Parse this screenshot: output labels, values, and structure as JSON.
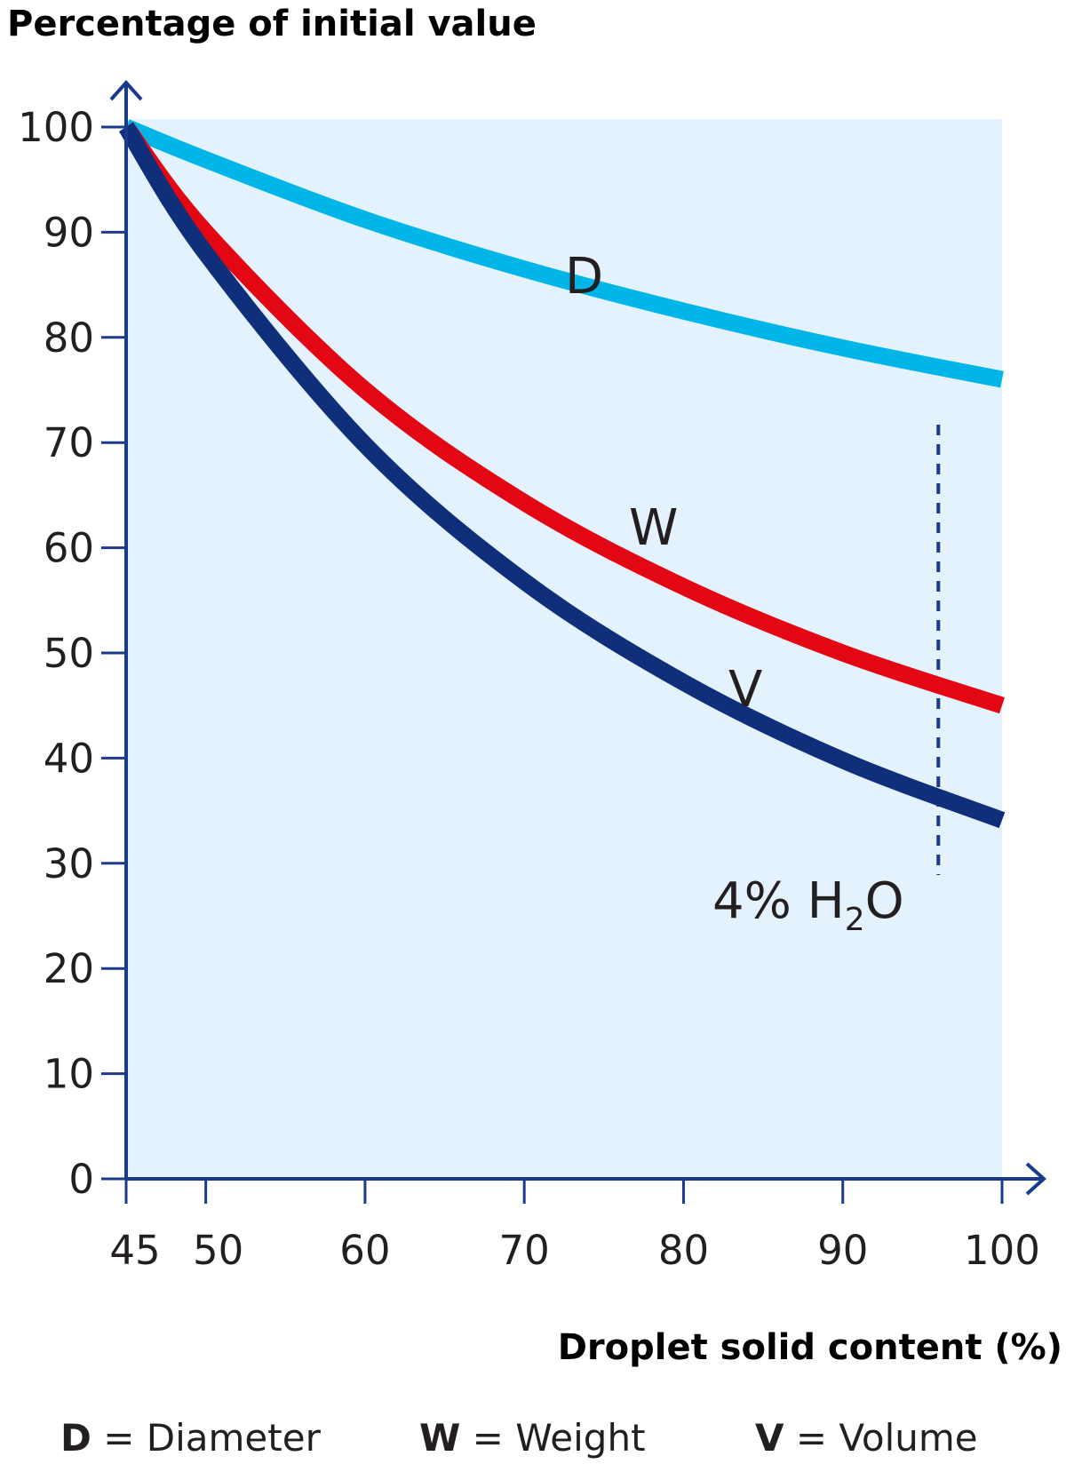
{
  "chart_data": {
    "type": "line",
    "ylabel": "Percentage of initial value",
    "xlabel": "Droplet solid content (%)",
    "xlim": [
      45,
      100
    ],
    "ylim": [
      0,
      100
    ],
    "x_ticks": [
      45,
      50,
      60,
      70,
      80,
      90,
      100
    ],
    "y_ticks": [
      0,
      10,
      20,
      30,
      40,
      50,
      60,
      70,
      80,
      90,
      100
    ],
    "grid": false,
    "series": [
      {
        "name": "D",
        "color": "#00b5e8",
        "x": [
          45,
          50,
          60,
          70,
          80,
          90,
          100
        ],
        "y": [
          100,
          96.9,
          91.2,
          86.5,
          82.5,
          79.0,
          76.0
        ]
      },
      {
        "name": "W",
        "color": "#e30613",
        "x": [
          45,
          50,
          60,
          70,
          80,
          90,
          100
        ],
        "y": [
          100,
          90.0,
          75.0,
          64.3,
          56.3,
          50.0,
          45.0
        ]
      },
      {
        "name": "V",
        "color": "#0f2f7a",
        "x": [
          45,
          50,
          60,
          70,
          80,
          90,
          100
        ],
        "y": [
          100,
          88.0,
          69.8,
          56.8,
          47.2,
          39.8,
          34.1
        ]
      }
    ],
    "annotations": [
      {
        "text": "4% H",
        "subscript": "2",
        "text_after": "O",
        "x": 96,
        "style": "dashed vertical line"
      }
    ],
    "background_color": "#e3f2fc",
    "axis_color": "#1a3a8c"
  },
  "legend": {
    "items": [
      {
        "key": "D",
        "label": " = Diameter"
      },
      {
        "key": "W",
        "label": " = Weight"
      },
      {
        "key": "V",
        "label": " = Volume"
      }
    ]
  }
}
